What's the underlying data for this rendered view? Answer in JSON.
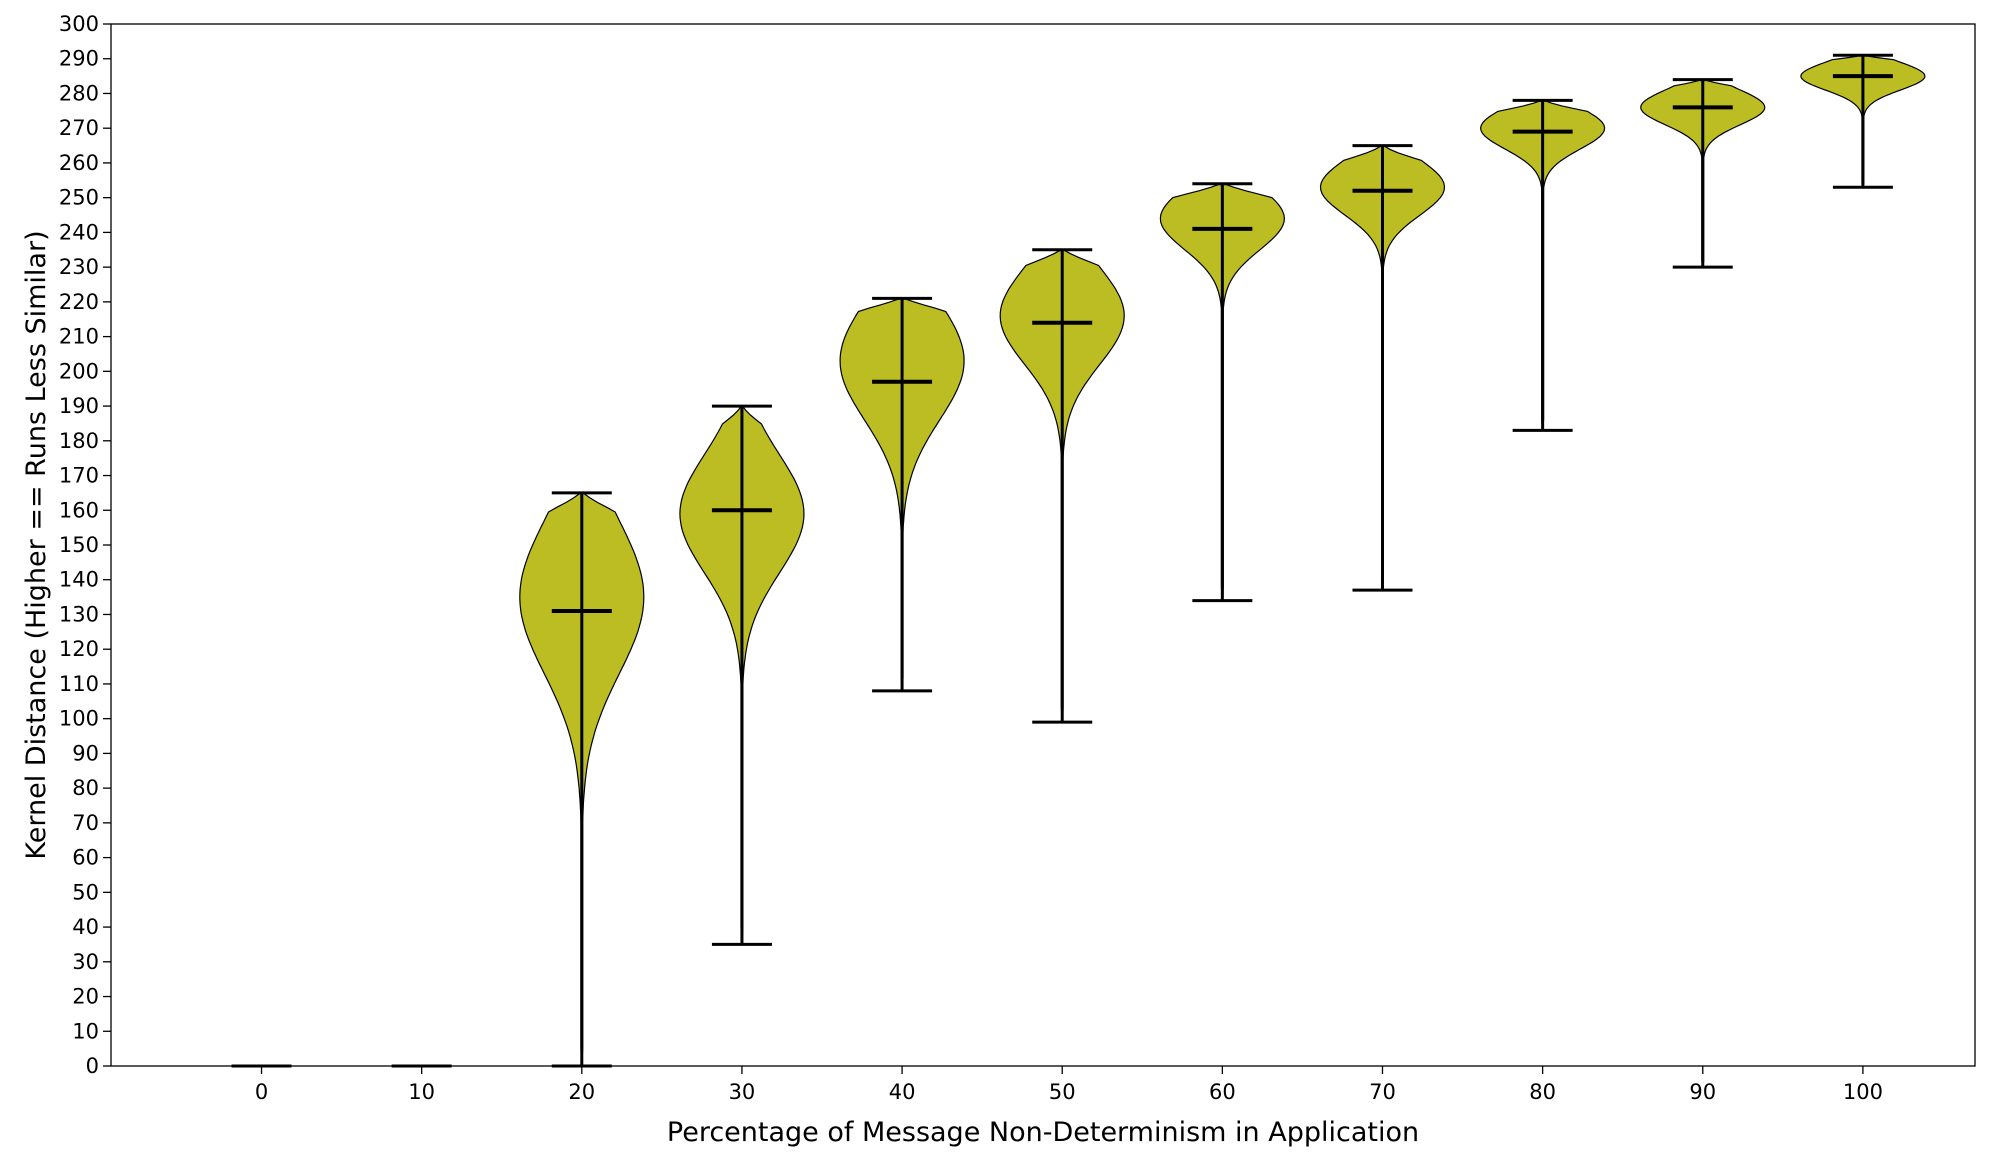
{
  "chart_data": {
    "type": "violin",
    "title": "",
    "xlabel": "Percentage of Message Non-Determinism in Application",
    "ylabel": "Kernel Distance (Higher == Runs Less Similar)",
    "xlim": [
      -9.4,
      107
    ],
    "ylim": [
      0,
      300
    ],
    "yticks": [
      0,
      10,
      20,
      30,
      40,
      50,
      60,
      70,
      80,
      90,
      100,
      110,
      120,
      130,
      140,
      150,
      160,
      170,
      180,
      190,
      200,
      210,
      220,
      230,
      240,
      250,
      260,
      270,
      280,
      290,
      300
    ],
    "grid": false,
    "violin_color": "#bcbd22",
    "categories": [
      0,
      10,
      20,
      30,
      40,
      50,
      60,
      70,
      80,
      90,
      100
    ],
    "series": [
      {
        "x": 0,
        "min": 0,
        "max": 0,
        "median": 0,
        "mode": 0,
        "spread": 0
      },
      {
        "x": 10,
        "min": 0,
        "max": 0,
        "median": 0,
        "mode": 0,
        "spread": 0
      },
      {
        "x": 20,
        "min": 0,
        "max": 165,
        "median": 131,
        "mode": 135,
        "spread": 22
      },
      {
        "x": 30,
        "min": 35,
        "max": 190,
        "median": 160,
        "mode": 159,
        "spread": 17
      },
      {
        "x": 40,
        "min": 108,
        "max": 221,
        "median": 197,
        "mode": 203,
        "spread": 17
      },
      {
        "x": 50,
        "min": 99,
        "max": 235,
        "median": 214,
        "mode": 216,
        "spread": 14
      },
      {
        "x": 60,
        "min": 134,
        "max": 254,
        "median": 241,
        "mode": 244,
        "spread": 9
      },
      {
        "x": 70,
        "min": 137,
        "max": 265,
        "median": 252,
        "mode": 253,
        "spread": 8
      },
      {
        "x": 80,
        "min": 183,
        "max": 278,
        "median": 269,
        "mode": 270,
        "spread": 6
      },
      {
        "x": 90,
        "min": 230,
        "max": 284,
        "median": 276,
        "mode": 276,
        "spread": 5
      },
      {
        "x": 100,
        "min": 253,
        "max": 291,
        "median": 285,
        "mode": 285,
        "spread": 4
      }
    ]
  }
}
